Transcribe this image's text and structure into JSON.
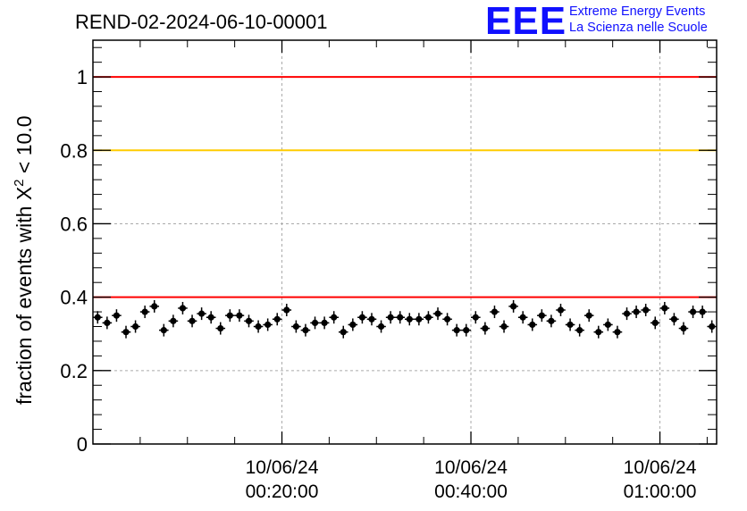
{
  "header": {
    "title": "REND-02-2024-06-10-00001",
    "logo_mark": "EEE",
    "logo_line1": "Extreme Energy Events",
    "logo_line2": "La Scienza nelle Scuole"
  },
  "chart_data": {
    "type": "scatter",
    "title": "REND-02-2024-06-10-00001",
    "ylabel_prefix": "fraction of events with X",
    "ylabel_sup": "2",
    "ylabel_suffix": " < 10.0",
    "xlabel": "",
    "ylim": [
      0,
      1.1
    ],
    "xlim_minutes": [
      0,
      66
    ],
    "grid": true,
    "y_ticks": [
      {
        "value": 0,
        "label": "0"
      },
      {
        "value": 0.2,
        "label": "0.2"
      },
      {
        "value": 0.4,
        "label": "0.4"
      },
      {
        "value": 0.6,
        "label": "0.6"
      },
      {
        "value": 0.8,
        "label": "0.8"
      },
      {
        "value": 1,
        "label": "1"
      }
    ],
    "x_ticks": [
      {
        "minute": 20,
        "date": "10/06/24",
        "time": "00:20:00"
      },
      {
        "minute": 40,
        "date": "10/06/24",
        "time": "00:40:00"
      },
      {
        "minute": 60,
        "date": "10/06/24",
        "time": "01:00:00"
      }
    ],
    "reference_lines": [
      {
        "y": 1.0,
        "color": "#ff0000"
      },
      {
        "y": 0.8,
        "color": "#ffcc00"
      },
      {
        "y": 0.4,
        "color": "#ff0000"
      }
    ],
    "series": [
      {
        "marker_color": "#000000",
        "y_error": 0.017,
        "x_error_minutes": 0.5,
        "x": [
          0.5,
          1.5,
          2.5,
          3.5,
          4.5,
          5.5,
          6.5,
          7.5,
          8.5,
          9.5,
          10.5,
          11.5,
          12.5,
          13.5,
          14.5,
          15.5,
          16.5,
          17.5,
          18.5,
          19.5,
          20.5,
          21.5,
          22.5,
          23.5,
          24.5,
          25.5,
          26.5,
          27.5,
          28.5,
          29.5,
          30.5,
          31.5,
          32.5,
          33.5,
          34.5,
          35.5,
          36.5,
          37.5,
          38.5,
          39.5,
          40.5,
          41.5,
          42.5,
          43.5,
          44.5,
          45.5,
          46.5,
          47.5,
          48.5,
          49.5,
          50.5,
          51.5,
          52.5,
          53.5,
          54.5,
          55.5,
          56.5,
          57.5,
          58.5,
          59.5,
          60.5,
          61.5,
          62.5,
          63.5,
          64.5,
          65.5
        ],
        "y": [
          0.345,
          0.33,
          0.35,
          0.305,
          0.32,
          0.36,
          0.375,
          0.31,
          0.335,
          0.37,
          0.335,
          0.355,
          0.345,
          0.315,
          0.35,
          0.35,
          0.335,
          0.32,
          0.325,
          0.34,
          0.365,
          0.32,
          0.31,
          0.33,
          0.33,
          0.345,
          0.305,
          0.325,
          0.345,
          0.34,
          0.32,
          0.345,
          0.345,
          0.34,
          0.34,
          0.345,
          0.355,
          0.34,
          0.31,
          0.31,
          0.345,
          0.315,
          0.36,
          0.32,
          0.375,
          0.345,
          0.325,
          0.35,
          0.335,
          0.365,
          0.325,
          0.31,
          0.35,
          0.305,
          0.325,
          0.305,
          0.355,
          0.36,
          0.365,
          0.33,
          0.37,
          0.34,
          0.315,
          0.36,
          0.36,
          0.32
        ]
      }
    ]
  }
}
